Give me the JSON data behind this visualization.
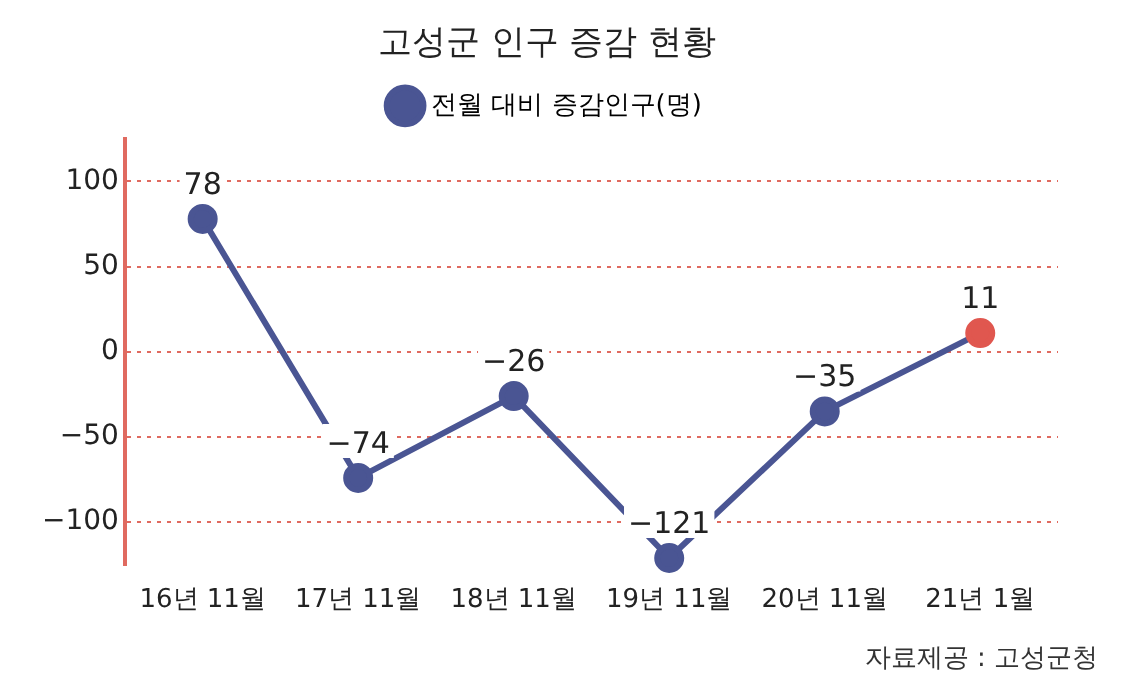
{
  "chart_data": {
    "type": "line",
    "title": "고성군 인구 증감 현황",
    "categories": [
      "16년 11월",
      "17년 11월",
      "18년 11월",
      "19년 11월",
      "20년 11월",
      "21년 1월"
    ],
    "series": [
      {
        "name": "전월 대비 증감인구(명)",
        "color": "#4a5593",
        "colors": [
          "#4a5593",
          "#4a5593",
          "#4a5593",
          "#4a5593",
          "#4a5593",
          "#e0574f"
        ],
        "values": [
          78,
          -74,
          -26,
          -121,
          -35,
          11
        ],
        "value_labels": [
          "78",
          "−74",
          "−26",
          "−121",
          "−35",
          "11"
        ]
      }
    ],
    "ylim": [
      -125,
      125
    ],
    "yticks": [
      {
        "value": -100,
        "label": "−100"
      },
      {
        "value": -50,
        "label": "−50"
      },
      0,
      50,
      100
    ],
    "grid": "y",
    "legend": "top",
    "marker": "circle",
    "line_style": "solid",
    "annotations": [
      "자료제공 : 고성군청"
    ]
  }
}
